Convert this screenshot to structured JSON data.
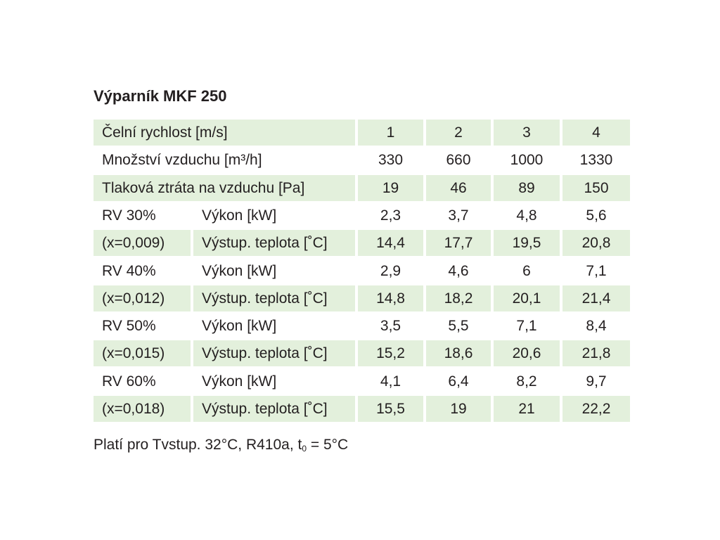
{
  "title": "Výparník MKF 250",
  "table": {
    "rows": [
      [
        "Čelní rychlost [m/s]",
        "1",
        "2",
        "3",
        "4"
      ],
      [
        "Množství vzduchu [m³/h]",
        "330",
        "660",
        "1000",
        "1330"
      ],
      [
        "Tlaková ztráta na vzduchu [Pa]",
        "19",
        "46",
        "89",
        "150"
      ],
      [
        "RV 30%",
        "Výkon [kW]",
        "2,3",
        "3,7",
        "4,8",
        "5,6"
      ],
      [
        "(x=0,009)",
        "Výstup. teplota [˚C]",
        "14,4",
        "17,7",
        "19,5",
        "20,8"
      ],
      [
        "RV 40%",
        "Výkon [kW]",
        "2,9",
        "4,6",
        "6",
        "7,1"
      ],
      [
        "(x=0,012)",
        "Výstup. teplota [˚C]",
        "14,8",
        "18,2",
        "20,1",
        "21,4"
      ],
      [
        "RV 50%",
        "Výkon [kW]",
        "3,5",
        "5,5",
        "7,1",
        "8,4"
      ],
      [
        "(x=0,015)",
        "Výstup. teplota [˚C]",
        "15,2",
        "18,6",
        "20,6",
        "21,8"
      ],
      [
        "RV 60%",
        "Výkon [kW]",
        "4,1",
        "6,4",
        "8,2",
        "9,7"
      ],
      [
        "(x=0,018)",
        "Výstup. teplota [˚C]",
        "15,5",
        "19",
        "21",
        "22,2"
      ]
    ]
  },
  "footnote": {
    "main": "Platí pro Tvstup. 32°C, R410a, t",
    "subscript": "0",
    "tail": " = 5°C"
  }
}
